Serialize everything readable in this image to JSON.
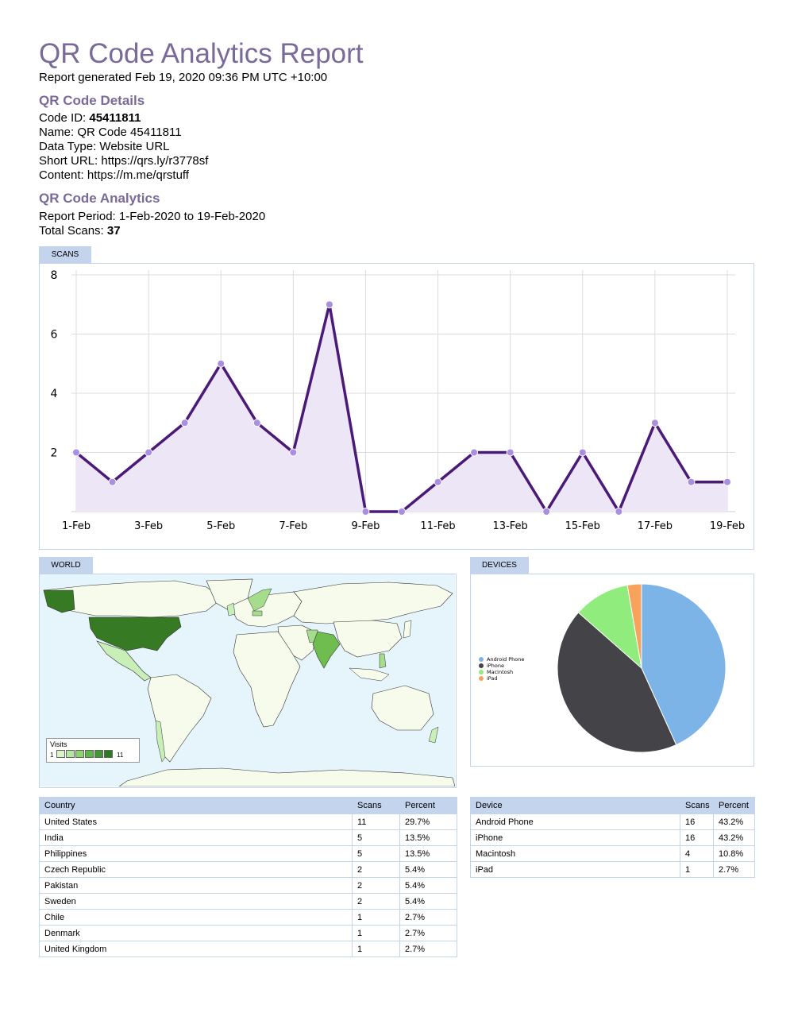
{
  "report": {
    "title": "QR Code Analytics Report",
    "generated": "Report generated Feb 19, 2020 09:36 PM UTC +10:00"
  },
  "details": {
    "heading": "QR Code Details",
    "code_id_label": "Code ID: ",
    "code_id": "45411811",
    "name": "Name: QR Code 45411811",
    "data_type": "Data Type: Website URL",
    "short_url": "Short URL: https://qrs.ly/r3778sf",
    "content": "Content: https://m.me/qrstuff"
  },
  "analytics": {
    "heading": "QR Code Analytics",
    "period": "Report Period: 1-Feb-2020 to 19-Feb-2020",
    "total_label": "Total Scans: ",
    "total": "37"
  },
  "tabs": {
    "scans": "SCANS",
    "world": "WORLD",
    "devices": "DEVICES"
  },
  "colors": {
    "line": "#4b1a78",
    "fill": "#ede6f7",
    "point": "#a98fe0",
    "tab": "#c4d4ec",
    "android": "#7db4e8",
    "iphone": "#434348",
    "macintosh": "#90ed7d",
    "ipad": "#f7a35c"
  },
  "chart_data": [
    {
      "type": "area",
      "x": [
        "1-Feb",
        "2-Feb",
        "3-Feb",
        "4-Feb",
        "5-Feb",
        "6-Feb",
        "7-Feb",
        "8-Feb",
        "9-Feb",
        "10-Feb",
        "11-Feb",
        "12-Feb",
        "13-Feb",
        "14-Feb",
        "15-Feb",
        "16-Feb",
        "17-Feb",
        "18-Feb",
        "19-Feb"
      ],
      "values": [
        2,
        1,
        2,
        3,
        5,
        3,
        2,
        7,
        0,
        0,
        1,
        2,
        2,
        0,
        2,
        0,
        3,
        1,
        1
      ],
      "x_tick_labels": [
        "1-Feb",
        "3-Feb",
        "5-Feb",
        "7-Feb",
        "9-Feb",
        "11-Feb",
        "13-Feb",
        "15-Feb",
        "17-Feb",
        "19-Feb"
      ],
      "y_tick_labels": [
        "2",
        "4",
        "6",
        "8"
      ],
      "ylim": [
        0,
        8
      ],
      "grid": true
    },
    {
      "type": "pie",
      "categories": [
        "Android Phone",
        "iPhone",
        "Macintosh",
        "iPad"
      ],
      "values": [
        16,
        16,
        4,
        1
      ],
      "legend": "left"
    }
  ],
  "map": {
    "legend_title": "Visits",
    "legend_min": "1",
    "legend_max": "11",
    "legend_colors": [
      "#d8f5c8",
      "#b3e8a0",
      "#8ed36e",
      "#5cb845",
      "#3f9a30",
      "#2d7a22"
    ],
    "ocean": "#e6f4fb",
    "land": "#f6fbec",
    "scale_colors": {
      "us": "#367a24",
      "india": "#6fbd4f",
      "low": "#c9efb9",
      "mid": "#a5dd8d"
    }
  },
  "countries": {
    "headers": [
      "Country",
      "Scans",
      "Percent"
    ],
    "rows": [
      [
        "United States",
        "11",
        "29.7%"
      ],
      [
        "India",
        "5",
        "13.5%"
      ],
      [
        "Philippines",
        "5",
        "13.5%"
      ],
      [
        "Czech Republic",
        "2",
        "5.4%"
      ],
      [
        "Pakistan",
        "2",
        "5.4%"
      ],
      [
        "Sweden",
        "2",
        "5.4%"
      ],
      [
        "Chile",
        "1",
        "2.7%"
      ],
      [
        "Denmark",
        "1",
        "2.7%"
      ],
      [
        "United Kingdom",
        "1",
        "2.7%"
      ]
    ]
  },
  "devices": {
    "headers": [
      "Device",
      "Scans",
      "Percent"
    ],
    "rows": [
      [
        "Android Phone",
        "16",
        "43.2%"
      ],
      [
        "iPhone",
        "16",
        "43.2%"
      ],
      [
        "Macintosh",
        "4",
        "10.8%"
      ],
      [
        "iPad",
        "1",
        "2.7%"
      ]
    ]
  }
}
